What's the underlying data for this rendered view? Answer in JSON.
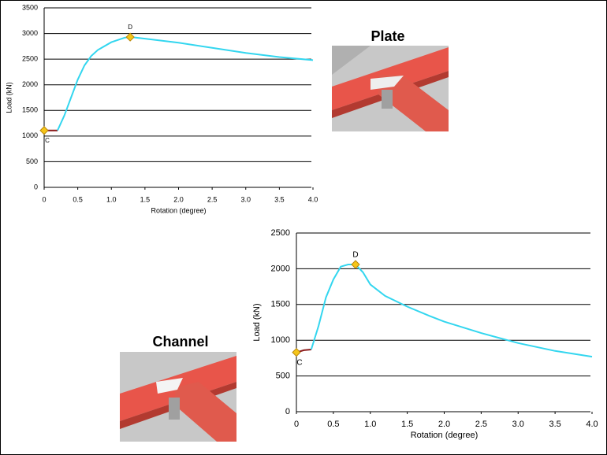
{
  "labels": {
    "plate": "Plate",
    "channel": "Channel"
  },
  "chart_data": [
    {
      "type": "line",
      "xlabel": "Rotation (degree)",
      "ylabel": "Load (kN)",
      "xlim": [
        0,
        4
      ],
      "ylim": [
        0,
        3500
      ],
      "xticks": [
        0,
        0.5,
        {
          "value": 1,
          "label": "1.0"
        },
        1.5,
        {
          "value": 2,
          "label": "2.0"
        },
        2.5,
        {
          "value": 3,
          "label": "3.0"
        },
        3.5,
        {
          "value": 4,
          "label": "4.0"
        }
      ],
      "yticks": [
        0,
        500,
        1000,
        1500,
        2000,
        2500,
        3000,
        3500
      ],
      "grid": true,
      "series": [
        {
          "color": "#8b1a1a",
          "x": [
            0,
            0.2
          ],
          "values": [
            1110,
            1110
          ]
        },
        {
          "color": "#33d6ef",
          "x": [
            0.2,
            0.3,
            0.4,
            0.5,
            0.6,
            0.7,
            0.8,
            1.0,
            1.2,
            1.3,
            1.5,
            2.0,
            2.5,
            3.0,
            3.5,
            4.0
          ],
          "values": [
            1110,
            1400,
            1750,
            2100,
            2380,
            2560,
            2680,
            2830,
            2920,
            2930,
            2900,
            2820,
            2720,
            2620,
            2540,
            2480
          ]
        }
      ],
      "points": {
        "color": "#f5c518",
        "x": [
          0,
          1.28
        ],
        "values": [
          1110,
          2930
        ],
        "labels": [
          "C",
          "D"
        ]
      }
    },
    {
      "type": "line",
      "xlabel": "Rotation (degree)",
      "ylabel": "Load (kN)",
      "xlim": [
        0,
        4
      ],
      "ylim": [
        0,
        2500
      ],
      "xticks": [
        0,
        0.5,
        {
          "value": 1,
          "label": "1.0"
        },
        1.5,
        {
          "value": 2,
          "label": "2.0"
        },
        2.5,
        {
          "value": 3,
          "label": "3.0"
        },
        3.5,
        {
          "value": 4,
          "label": "4.0"
        }
      ],
      "yticks": [
        0,
        500,
        1000,
        1500,
        2000,
        2500
      ],
      "grid": true,
      "series": [
        {
          "color": "#8b1a1a",
          "x": [
            0,
            0.1,
            0.2
          ],
          "values": [
            830,
            860,
            870
          ]
        },
        {
          "color": "#33d6ef",
          "x": [
            0.2,
            0.3,
            0.4,
            0.5,
            0.6,
            0.7,
            0.8,
            0.9,
            1.0,
            1.2,
            1.5,
            1.8,
            2.0,
            2.5,
            3.0,
            3.5,
            4.0
          ],
          "values": [
            870,
            1200,
            1600,
            1850,
            2030,
            2060,
            2060,
            1950,
            1780,
            1620,
            1470,
            1340,
            1260,
            1100,
            960,
            850,
            770
          ]
        }
      ],
      "points": {
        "color": "#f5c518",
        "x": [
          0,
          0.8
        ],
        "values": [
          830,
          2060
        ],
        "labels": [
          "C",
          "D"
        ]
      }
    }
  ]
}
